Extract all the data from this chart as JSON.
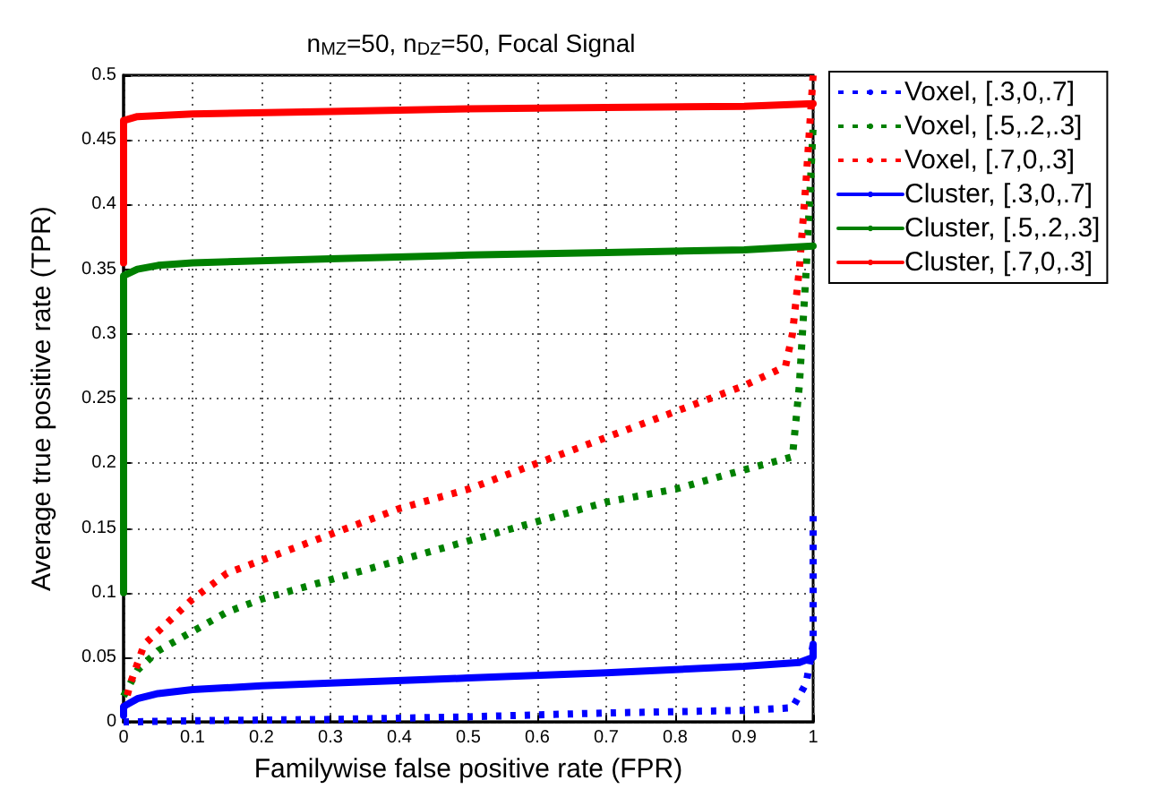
{
  "chart_data": {
    "type": "line",
    "title": "n$_{MZ}$=50, n$_{DZ}$=50, Focal Signal",
    "xlabel": "Familywise false positive rate (FPR)",
    "ylabel": "Average true positive rate (TPR)",
    "xlim": [
      0,
      1
    ],
    "xticks": [
      0,
      0.1,
      0.2,
      0.3,
      0.4,
      0.5,
      0.6,
      0.7,
      0.8,
      0.9,
      1
    ],
    "ylim": [
      0,
      0.5
    ],
    "yticks": [
      0,
      0.05,
      0.1,
      0.15,
      0.2,
      0.25,
      0.3,
      0.35,
      0.4,
      0.45,
      0.5
    ],
    "grid": true,
    "legend": "right",
    "marker": "none",
    "series": [
      {
        "name": "Voxel, [.3,0,.7]",
        "color": "#0000ff",
        "line_style": "dotted",
        "x": [
          0,
          0.1,
          0.3,
          0.5,
          0.7,
          0.9,
          0.97,
          0.99,
          1,
          1
        ],
        "values": [
          0,
          0.001,
          0.002,
          0.004,
          0.007,
          0.009,
          0.011,
          0.03,
          0.06,
          0.165
        ]
      },
      {
        "name": "Voxel, [.5,.2,.3]",
        "color": "#008000",
        "line_style": "dotted",
        "x": [
          0,
          0.02,
          0.05,
          0.1,
          0.15,
          0.2,
          0.3,
          0.4,
          0.5,
          0.6,
          0.7,
          0.8,
          0.9,
          0.97,
          0.98,
          0.99,
          1
        ],
        "values": [
          0.02,
          0.04,
          0.055,
          0.07,
          0.085,
          0.095,
          0.11,
          0.125,
          0.14,
          0.155,
          0.17,
          0.18,
          0.195,
          0.205,
          0.26,
          0.35,
          0.46
        ]
      },
      {
        "name": "Voxel, [.7,0,.3]",
        "color": "#ff0000",
        "line_style": "dotted",
        "x": [
          0,
          0.01,
          0.03,
          0.07,
          0.1,
          0.15,
          0.2,
          0.3,
          0.4,
          0.5,
          0.6,
          0.7,
          0.8,
          0.9,
          0.96,
          0.97,
          0.98,
          0.99,
          1
        ],
        "values": [
          0.01,
          0.03,
          0.06,
          0.08,
          0.095,
          0.115,
          0.125,
          0.145,
          0.165,
          0.18,
          0.2,
          0.22,
          0.24,
          0.26,
          0.275,
          0.3,
          0.35,
          0.42,
          0.5
        ]
      },
      {
        "name": "Cluster, [.3,0,.7]",
        "color": "#0000ff",
        "line_style": "solid",
        "x": [
          0,
          0,
          0.02,
          0.05,
          0.1,
          0.2,
          0.3,
          0.5,
          0.7,
          0.9,
          0.98,
          1,
          1
        ],
        "values": [
          0.005,
          0.012,
          0.018,
          0.022,
          0.025,
          0.028,
          0.03,
          0.034,
          0.038,
          0.043,
          0.046,
          0.05,
          0.06
        ]
      },
      {
        "name": "Cluster, [.5,.2,.3]",
        "color": "#008000",
        "line_style": "solid",
        "x": [
          0,
          0,
          0.02,
          0.05,
          0.1,
          0.3,
          0.5,
          0.7,
          0.9,
          1
        ],
        "values": [
          0.1,
          0.345,
          0.35,
          0.353,
          0.355,
          0.358,
          0.361,
          0.363,
          0.365,
          0.368
        ]
      },
      {
        "name": "Cluster, [.7,0,.3]",
        "color": "#ff0000",
        "line_style": "solid",
        "x": [
          0,
          0,
          0.02,
          0.1,
          0.3,
          0.5,
          0.7,
          0.9,
          1
        ],
        "values": [
          0.355,
          0.465,
          0.468,
          0.47,
          0.472,
          0.474,
          0.475,
          0.476,
          0.478
        ]
      }
    ]
  }
}
